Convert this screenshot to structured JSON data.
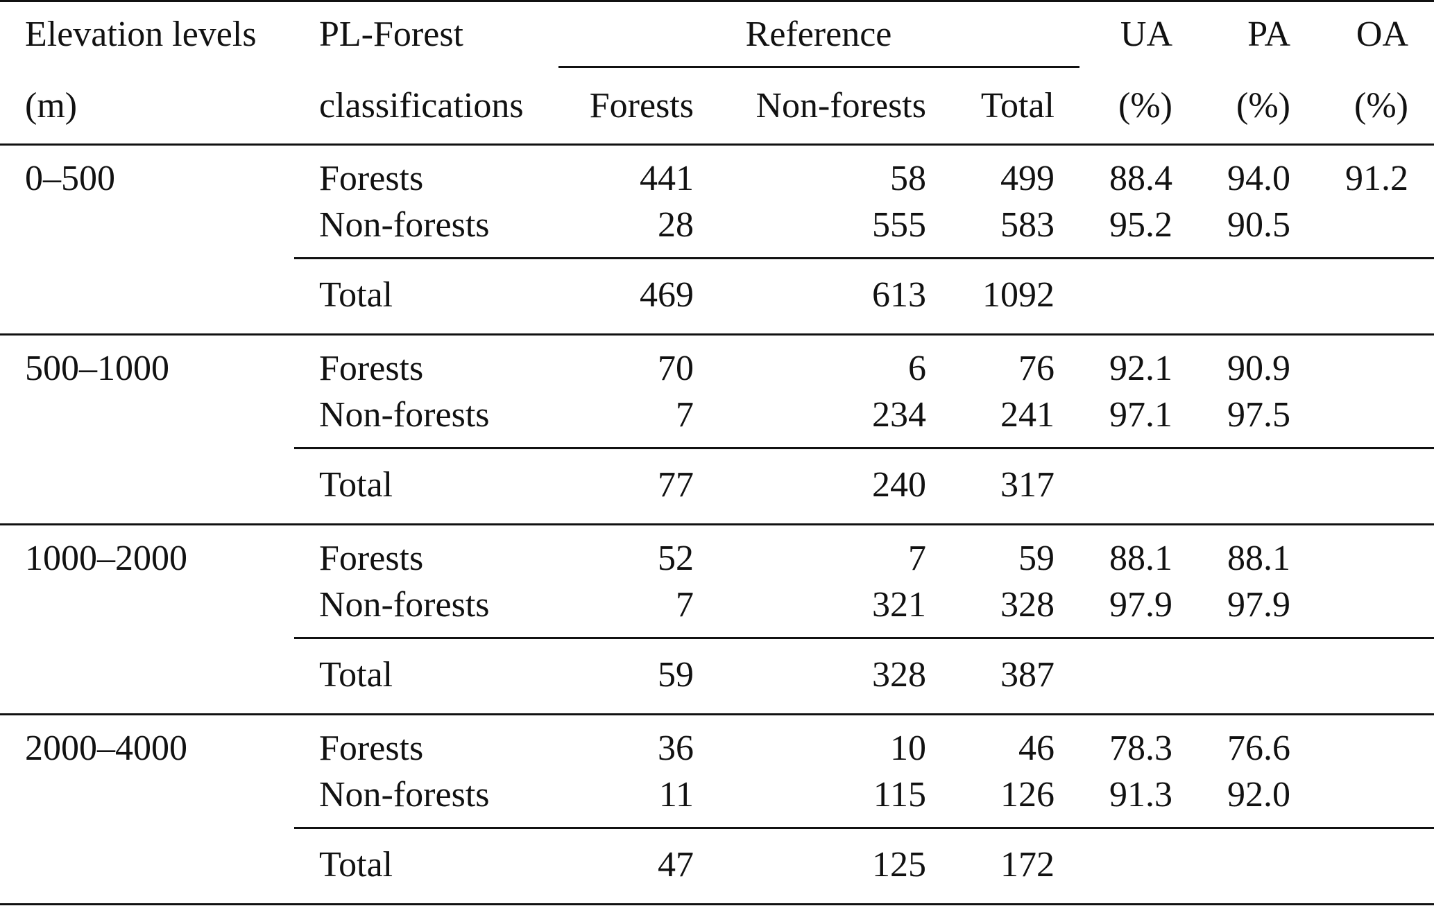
{
  "header": {
    "elevation_label_line1": "Elevation levels",
    "elevation_label_line2": "(m)",
    "classification_label_line1": "PL-Forest",
    "classification_label_line2": "classifications",
    "reference_label": "Reference",
    "reference_forests": "Forests",
    "reference_nonforests": "Non-forests",
    "reference_total": "Total",
    "ua_label": "UA",
    "pa_label": "PA",
    "oa_label": "OA",
    "ua_unit": "(%)",
    "pa_unit": "(%)",
    "oa_unit": "(%)"
  },
  "groups": [
    {
      "elevation": "0–500",
      "rows": [
        {
          "label": "Forests",
          "forests": "441",
          "nonforests": "58",
          "total": "499",
          "ua": "88.4",
          "pa": "94.0",
          "oa": "91.2"
        },
        {
          "label": "Non-forests",
          "forests": "28",
          "nonforests": "555",
          "total": "583",
          "ua": "95.2",
          "pa": "90.5",
          "oa": ""
        }
      ],
      "total": {
        "label": "Total",
        "forests": "469",
        "nonforests": "613",
        "total": "1092"
      }
    },
    {
      "elevation": "500–1000",
      "rows": [
        {
          "label": "Forests",
          "forests": "70",
          "nonforests": "6",
          "total": "76",
          "ua": "92.1",
          "pa": "90.9",
          "oa": ""
        },
        {
          "label": "Non-forests",
          "forests": "7",
          "nonforests": "234",
          "total": "241",
          "ua": "97.1",
          "pa": "97.5",
          "oa": ""
        }
      ],
      "total": {
        "label": "Total",
        "forests": "77",
        "nonforests": "240",
        "total": "317"
      }
    },
    {
      "elevation": "1000–2000",
      "rows": [
        {
          "label": "Forests",
          "forests": "52",
          "nonforests": "7",
          "total": "59",
          "ua": "88.1",
          "pa": "88.1",
          "oa": ""
        },
        {
          "label": "Non-forests",
          "forests": "7",
          "nonforests": "321",
          "total": "328",
          "ua": "97.9",
          "pa": "97.9",
          "oa": ""
        }
      ],
      "total": {
        "label": "Total",
        "forests": "59",
        "nonforests": "328",
        "total": "387"
      }
    },
    {
      "elevation": "2000–4000",
      "rows": [
        {
          "label": "Forests",
          "forests": "36",
          "nonforests": "10",
          "total": "46",
          "ua": "78.3",
          "pa": "76.6",
          "oa": ""
        },
        {
          "label": "Non-forests",
          "forests": "11",
          "nonforests": "115",
          "total": "126",
          "ua": "91.3",
          "pa": "92.0",
          "oa": ""
        }
      ],
      "total": {
        "label": "Total",
        "forests": "47",
        "nonforests": "125",
        "total": "172"
      }
    }
  ]
}
